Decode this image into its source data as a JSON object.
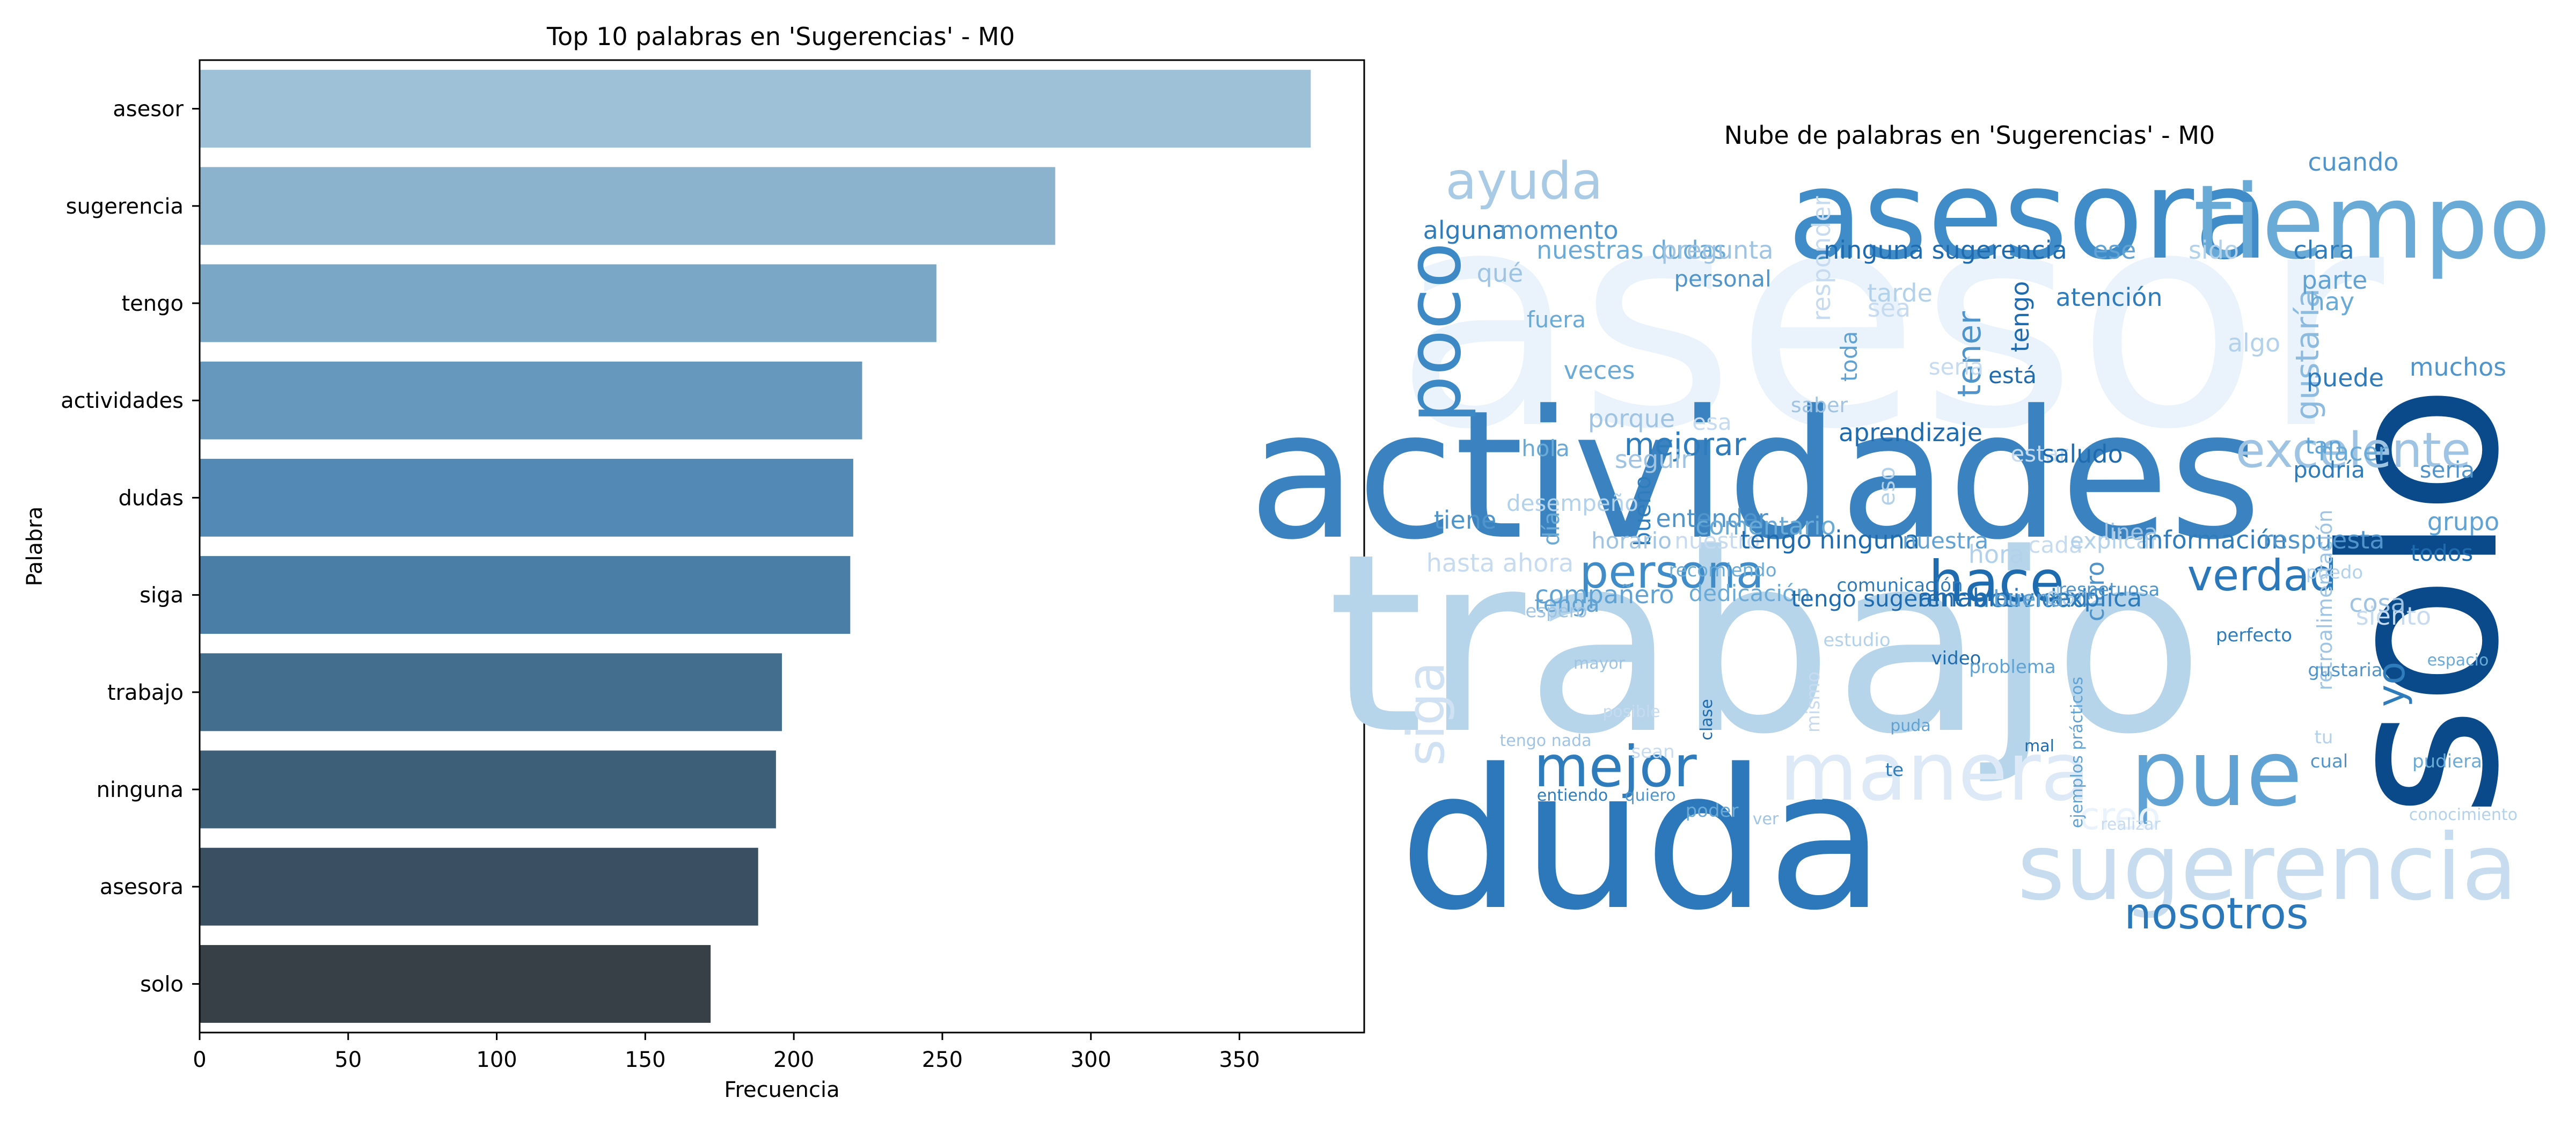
{
  "chart_data": [
    {
      "type": "bar",
      "orientation": "horizontal",
      "title": "Top 10 palabras en 'Sugerencias' - M0",
      "xlabel": "Frecuencia",
      "ylabel": "Palabra",
      "categories": [
        "asesor",
        "sugerencia",
        "tengo",
        "actividades",
        "dudas",
        "siga",
        "trabajo",
        "ninguna",
        "asesora",
        "solo"
      ],
      "values": [
        374,
        288,
        248,
        223,
        220,
        219,
        196,
        194,
        188,
        172
      ],
      "colors": [
        "#9fc1d8",
        "#8cb3ce",
        "#7ba7c7",
        "#6698be",
        "#5289b5",
        "#4a7ea6",
        "#436e8e",
        "#3d5f78",
        "#3a5062",
        "#373f47"
      ],
      "xlim": [
        0,
        392
      ],
      "xticks": [
        0,
        50,
        100,
        150,
        200,
        250,
        300,
        350
      ],
      "grid": false,
      "legend": "none"
    },
    {
      "type": "wordcloud",
      "title": "Nube de palabras en 'Sugerencias' - M0",
      "colormap": "Blues",
      "words": [
        {
          "text": "asesor",
          "weight": 1.0
        },
        {
          "text": "trabajo",
          "weight": 0.9
        },
        {
          "text": "solo",
          "weight": 0.85
        },
        {
          "text": "actividades",
          "weight": 0.7
        },
        {
          "text": "duda",
          "weight": 0.75
        },
        {
          "text": "asesora",
          "weight": 0.5
        },
        {
          "text": "tiempo",
          "weight": 0.5
        },
        {
          "text": "pue",
          "weight": 0.4
        },
        {
          "text": "sugerencia",
          "weight": 0.4
        },
        {
          "text": "manera",
          "weight": 0.38
        },
        {
          "text": "poco",
          "weight": 0.35
        },
        {
          "text": "ayuda",
          "weight": 0.25
        },
        {
          "text": "excelente",
          "weight": 0.25
        },
        {
          "text": "mejor",
          "weight": 0.28
        },
        {
          "text": "siga",
          "weight": 0.28
        },
        {
          "text": "hace",
          "weight": 0.25
        },
        {
          "text": "persona",
          "weight": 0.22
        },
        {
          "text": "verdad",
          "weight": 0.2
        },
        {
          "text": "nosotros",
          "weight": 0.22
        },
        {
          "text": "creo",
          "weight": 0.2
        },
        {
          "text": "mejorar",
          "weight": 0.17
        },
        {
          "text": "yo",
          "weight": 0.18
        },
        {
          "text": "tener",
          "weight": 0.15
        },
        {
          "text": "gustaría",
          "weight": 0.15
        },
        {
          "text": "alguna",
          "weight": 0.08
        },
        {
          "text": "momento",
          "weight": 0.08
        },
        {
          "text": "nuestras dudas",
          "weight": 0.08
        },
        {
          "text": "pregunta",
          "weight": 0.08
        },
        {
          "text": "responder",
          "weight": 0.08
        },
        {
          "text": "ninguna sugerencia",
          "weight": 0.08
        },
        {
          "text": "ese",
          "weight": 0.08
        },
        {
          "text": "sido",
          "weight": 0.08
        },
        {
          "text": "clara",
          "weight": 0.08
        },
        {
          "text": "cuando",
          "weight": 0.08
        },
        {
          "text": "hay",
          "weight": 0.08
        },
        {
          "text": "qué",
          "weight": 0.08
        },
        {
          "text": "sea",
          "weight": 0.08
        },
        {
          "text": "tengo",
          "weight": 0.08
        },
        {
          "text": "parte",
          "weight": 0.08
        },
        {
          "text": "tarde",
          "weight": 0.08
        },
        {
          "text": "atención",
          "weight": 0.08
        },
        {
          "text": "personal",
          "weight": 0.07
        },
        {
          "text": "fuera",
          "weight": 0.07
        },
        {
          "text": "saber",
          "weight": 0.06
        },
        {
          "text": "sería",
          "weight": 0.07
        },
        {
          "text": "está",
          "weight": 0.07
        },
        {
          "text": "toda",
          "weight": 0.07
        },
        {
          "text": "algo",
          "weight": 0.08
        },
        {
          "text": "puede",
          "weight": 0.08
        },
        {
          "text": "muchos",
          "weight": 0.08
        },
        {
          "text": "veces",
          "weight": 0.08
        },
        {
          "text": "porque",
          "weight": 0.08
        },
        {
          "text": "esa",
          "weight": 0.07
        },
        {
          "text": "aprendizaje",
          "weight": 0.08
        },
        {
          "text": "tan",
          "weight": 0.07
        },
        {
          "text": "eso",
          "weight": 0.07
        },
        {
          "text": "podría",
          "weight": 0.07
        },
        {
          "text": "seria",
          "weight": 0.07
        },
        {
          "text": "hola",
          "weight": 0.07
        },
        {
          "text": "seguir",
          "weight": 0.08
        },
        {
          "text": "estar",
          "weight": 0.07
        },
        {
          "text": "saludo",
          "weight": 0.08
        },
        {
          "text": "grupo",
          "weight": 0.08
        },
        {
          "text": "desempeño",
          "weight": 0.07
        },
        {
          "text": "bueno",
          "weight": 0.07
        },
        {
          "text": "entender",
          "weight": 0.08
        },
        {
          "text": "comentario",
          "weight": 0.08
        },
        {
          "text": "linea",
          "weight": 0.07
        },
        {
          "text": "cada",
          "weight": 0.07
        },
        {
          "text": "todos",
          "weight": 0.07
        },
        {
          "text": "tenga",
          "weight": 0.07
        },
        {
          "text": "hora",
          "weight": 0.08
        },
        {
          "text": "actividad",
          "weight": 0.08
        },
        {
          "text": "claro",
          "weight": 0.08
        },
        {
          "text": "dedicación",
          "weight": 0.07
        },
        {
          "text": "cosa",
          "weight": 0.08
        },
        {
          "text": "siento",
          "weight": 0.08
        },
        {
          "text": "amable",
          "weight": 0.08
        },
        {
          "text": "compañero",
          "weight": 0.08
        },
        {
          "text": "dar",
          "weight": 0.08
        },
        {
          "text": "explica",
          "weight": 0.08
        },
        {
          "text": "tiene",
          "weight": 0.08
        },
        {
          "text": "día",
          "weight": 0.07
        },
        {
          "text": "horario",
          "weight": 0.07
        },
        {
          "text": "nuestro",
          "weight": 0.07
        },
        {
          "text": "tengo ninguna",
          "weight": 0.08
        },
        {
          "text": "nuestra",
          "weight": 0.07
        },
        {
          "text": "explicar",
          "weight": 0.07
        },
        {
          "text": "información",
          "weight": 0.08
        },
        {
          "text": "respuesta",
          "weight": 0.08
        },
        {
          "text": "hacer",
          "weight": 0.08
        },
        {
          "text": "retroalimentación",
          "weight": 0.06
        },
        {
          "text": "hasta ahora",
          "weight": 0.08
        },
        {
          "text": "tengo sugerencia",
          "weight": 0.07
        },
        {
          "text": "buena",
          "weight": 0.07
        },
        {
          "text": "puedo",
          "weight": 0.05
        },
        {
          "text": "comunicación",
          "weight": 0.05
        },
        {
          "text": "respetuosa",
          "weight": 0.05
        },
        {
          "text": "recomiendo",
          "weight": 0.05
        },
        {
          "text": "espero",
          "weight": 0.05
        },
        {
          "text": "mismo",
          "weight": 0.05
        },
        {
          "text": "video",
          "weight": 0.05
        },
        {
          "text": "problema",
          "weight": 0.05
        },
        {
          "text": "estudio",
          "weight": 0.05
        },
        {
          "text": "perfecto",
          "weight": 0.05
        },
        {
          "text": "gustaria",
          "weight": 0.05
        },
        {
          "text": "espacio",
          "weight": 0.04
        },
        {
          "text": "mayor",
          "weight": 0.04
        },
        {
          "text": "posible",
          "weight": 0.04
        },
        {
          "text": "clase",
          "weight": 0.04
        },
        {
          "text": "puda",
          "weight": 0.04
        },
        {
          "text": "tu",
          "weight": 0.05
        },
        {
          "text": "te",
          "weight": 0.05
        },
        {
          "text": "cual",
          "weight": 0.05
        },
        {
          "text": "pudiera",
          "weight": 0.05
        },
        {
          "text": "tengo nada",
          "weight": 0.04
        },
        {
          "text": "sean",
          "weight": 0.05
        },
        {
          "text": "mal",
          "weight": 0.04
        },
        {
          "text": "ejemplos prácticos",
          "weight": 0.04
        },
        {
          "text": "conocimiento",
          "weight": 0.04
        },
        {
          "text": "entiendo",
          "weight": 0.04
        },
        {
          "text": "quiero",
          "weight": 0.04
        },
        {
          "text": "poder",
          "weight": 0.05
        },
        {
          "text": "ver",
          "weight": 0.04
        },
        {
          "text": "realizar",
          "weight": 0.04
        }
      ]
    }
  ]
}
